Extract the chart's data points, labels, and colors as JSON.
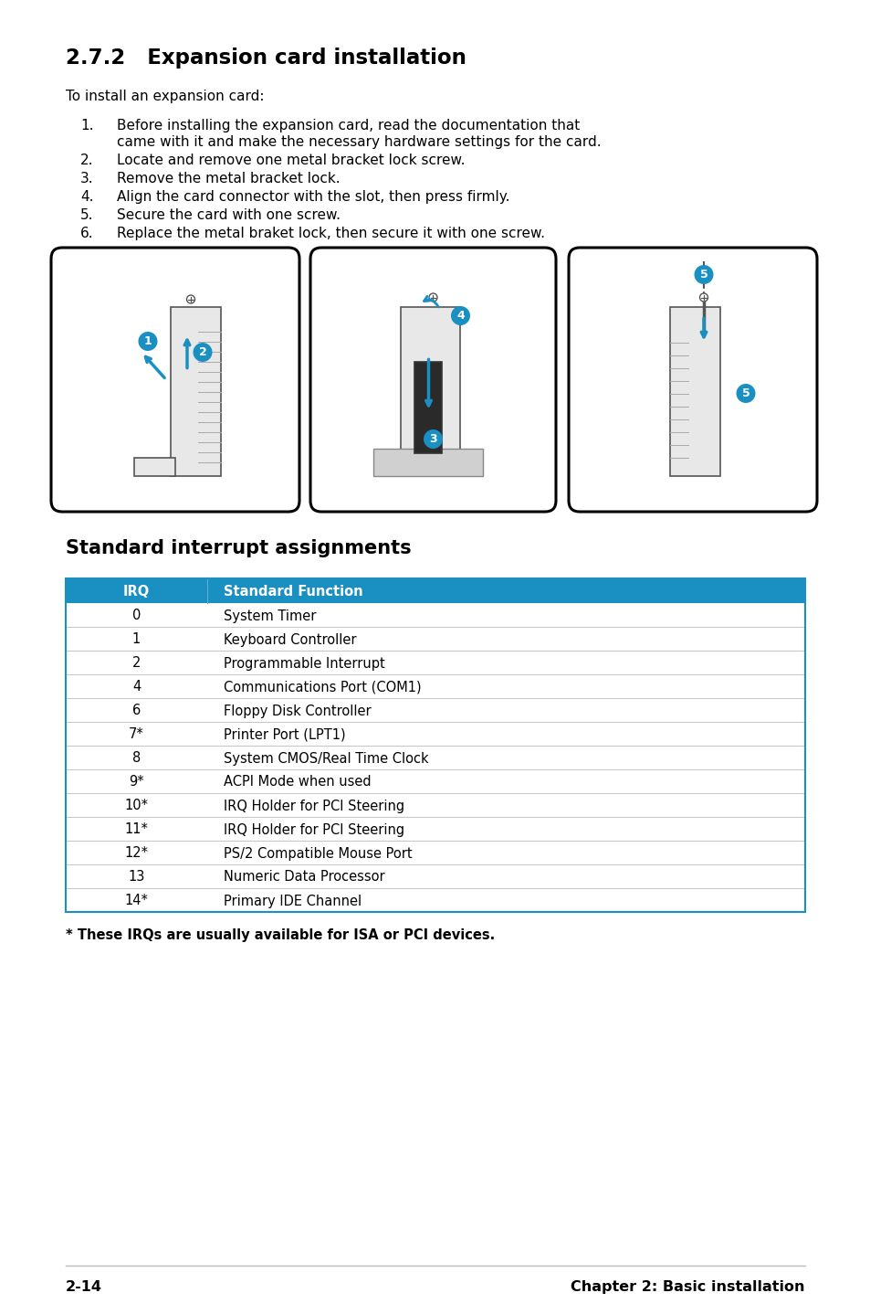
{
  "title": "2.7.2   Expansion card installation",
  "intro": "To install an expansion card:",
  "steps": [
    [
      "1.",
      "Before installing the expansion card, read the documentation that",
      "came with it and make the necessary hardware settings for the card."
    ],
    [
      "2.",
      "Locate and remove one metal bracket lock screw."
    ],
    [
      "3.",
      "Remove the metal bracket lock."
    ],
    [
      "4.",
      "Align the card connector with the slot, then press firmly."
    ],
    [
      "5.",
      "Secure the card with one screw."
    ],
    [
      "6.",
      "Replace the metal braket lock, then secure it with one screw."
    ]
  ],
  "table_title": "Standard interrupt assignments",
  "table_header": [
    "IRQ",
    "Standard Function"
  ],
  "table_header_bg": "#1a8fc1",
  "table_header_color": "#ffffff",
  "table_rows": [
    [
      "0",
      "System Timer"
    ],
    [
      "1",
      "Keyboard Controller"
    ],
    [
      "2",
      "Programmable Interrupt"
    ],
    [
      "4",
      "Communications Port (COM1)"
    ],
    [
      "6",
      "Floppy Disk Controller"
    ],
    [
      "7*",
      "Printer Port (LPT1)"
    ],
    [
      "8",
      "System CMOS/Real Time Clock"
    ],
    [
      "9*",
      "ACPI Mode when used"
    ],
    [
      "10*",
      "IRQ Holder for PCI Steering"
    ],
    [
      "11*",
      "IRQ Holder for PCI Steering"
    ],
    [
      "12*",
      "PS/2 Compatible Mouse Port"
    ],
    [
      "13",
      "Numeric Data Processor"
    ],
    [
      "14*",
      "Primary IDE Channel"
    ]
  ],
  "table_border_color": "#1a8fc1",
  "footnote": "* These IRQs are usually available for ISA or PCI devices.",
  "footer_left": "2-14",
  "footer_right": "Chapter 2: Basic installation",
  "bg_color": "#ffffff",
  "text_color": "#000000"
}
